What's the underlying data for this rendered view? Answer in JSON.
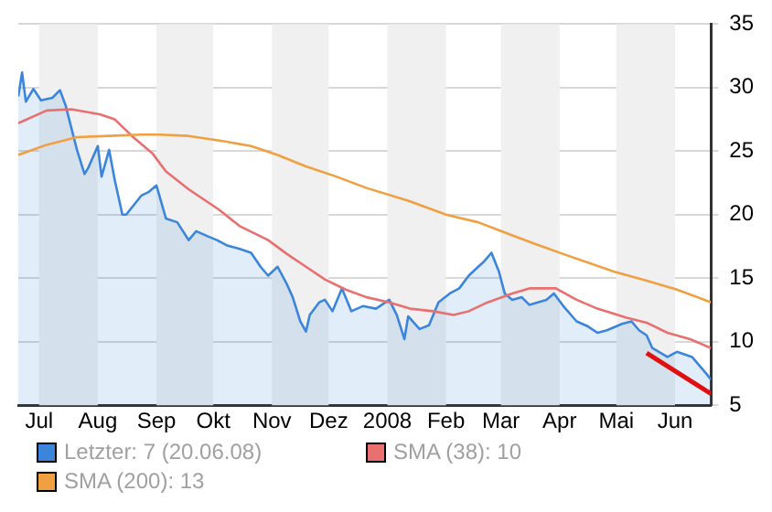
{
  "chart_data": {
    "type": "line",
    "x": [
      "2007-06-20",
      "2007-06-22",
      "2007-06-24",
      "2007-06-28",
      "2007-07-02",
      "2007-07-08",
      "2007-07-12",
      "2007-07-15",
      "2007-07-21",
      "2007-07-25",
      "2007-07-27",
      "2007-08-01",
      "2007-08-03",
      "2007-08-07",
      "2007-08-10",
      "2007-08-14",
      "2007-08-16",
      "2007-08-24",
      "2007-08-28",
      "2007-09-01",
      "2007-09-06",
      "2007-09-12",
      "2007-09-18",
      "2007-09-22",
      "2007-09-28",
      "2007-10-03",
      "2007-10-08",
      "2007-10-15",
      "2007-10-21",
      "2007-10-26",
      "2007-10-30",
      "2007-11-04",
      "2007-11-09",
      "2007-11-12",
      "2007-11-16",
      "2007-11-19",
      "2007-11-21",
      "2007-11-26",
      "2007-11-29",
      "2007-12-03",
      "2007-12-08",
      "2007-12-13",
      "2007-12-19",
      "2007-12-26",
      "2008-01-02",
      "2008-01-06",
      "2008-01-10",
      "2008-01-12",
      "2008-01-18",
      "2008-01-23",
      "2008-01-28",
      "2008-02-03",
      "2008-02-08",
      "2008-02-13",
      "2008-02-18",
      "2008-02-21",
      "2008-02-25",
      "2008-02-29",
      "2008-03-03",
      "2008-03-07",
      "2008-03-12",
      "2008-03-16",
      "2008-03-25",
      "2008-03-29",
      "2008-04-03",
      "2008-04-10",
      "2008-04-16",
      "2008-04-21",
      "2008-04-26",
      "2008-05-04",
      "2008-05-09",
      "2008-05-13",
      "2008-05-17",
      "2008-05-20",
      "2008-05-28",
      "2008-06-02",
      "2008-06-10",
      "2008-06-14",
      "2008-06-18",
      "2008-06-20"
    ],
    "series": [
      {
        "name": "Letzter: 7 (20.06.08)",
        "type": "area",
        "color": "#3b86dc",
        "values": [
          29.3,
          31.2,
          28.9,
          29.9,
          29,
          29.2,
          29.8,
          28.6,
          25.1,
          23.2,
          23.7,
          25.4,
          23,
          25.1,
          22.7,
          20,
          20,
          21.5,
          21.8,
          22.3,
          19.7,
          19.4,
          18,
          18.7,
          18.3,
          18,
          17.6,
          17.3,
          17,
          15.9,
          15.2,
          15.9,
          14.5,
          13.5,
          11.6,
          10.8,
          12.1,
          13.1,
          13.3,
          12.4,
          14.2,
          12.4,
          12.8,
          12.6,
          13.3,
          12.1,
          10.2,
          12,
          11,
          11.3,
          13.1,
          13.8,
          14.2,
          15.2,
          15.9,
          16.3,
          17,
          15.5,
          13.8,
          13.3,
          13.5,
          12.9,
          13.3,
          13.8,
          12.8,
          11.6,
          11.2,
          10.7,
          10.9,
          11.4,
          11.6,
          10.9,
          10.5,
          9.5,
          8.8,
          9.2,
          8.8,
          8.1,
          7.4,
          7
        ]
      },
      {
        "name": "SMA (38): 10",
        "type": "line",
        "color": "#e87070",
        "x": [
          "2007-06-20",
          "2007-07-05",
          "2007-07-18",
          "2007-08-02",
          "2007-08-10",
          "2007-08-19",
          "2007-08-30",
          "2007-09-06",
          "2007-09-18",
          "2007-10-04",
          "2007-10-15",
          "2007-10-30",
          "2007-11-09",
          "2007-11-19",
          "2007-11-29",
          "2007-12-10",
          "2007-12-21",
          "2008-01-02",
          "2008-01-13",
          "2008-01-25",
          "2008-02-05",
          "2008-02-13",
          "2008-02-23",
          "2008-03-07",
          "2008-03-16",
          "2008-03-30",
          "2008-04-10",
          "2008-04-21",
          "2008-05-06",
          "2008-05-17",
          "2008-05-28",
          "2008-06-09",
          "2008-06-20"
        ],
        "values": [
          27.2,
          28.2,
          28.3,
          27.9,
          27.5,
          26.2,
          24.8,
          23.4,
          22,
          20.4,
          19.1,
          18,
          16.9,
          15.9,
          14.9,
          14.1,
          13.5,
          13.1,
          12.6,
          12.4,
          12.1,
          12.4,
          13.1,
          13.8,
          14.2,
          14.2,
          13.3,
          12.6,
          11.9,
          11.5,
          10.7,
          10.2,
          9.5
        ]
      },
      {
        "name": "SMA (200): 13",
        "type": "line",
        "color": "#f0a040",
        "x": [
          "2007-06-20",
          "2007-07-05",
          "2007-07-21",
          "2007-08-07",
          "2007-08-24",
          "2007-09-03",
          "2007-09-18",
          "2007-10-06",
          "2007-10-21",
          "2007-11-04",
          "2007-11-19",
          "2007-12-05",
          "2007-12-21",
          "2008-01-12",
          "2008-02-01",
          "2008-02-18",
          "2008-03-03",
          "2008-03-19",
          "2008-04-03",
          "2008-04-30",
          "2008-05-17",
          "2008-06-02",
          "2008-06-20"
        ],
        "values": [
          24.7,
          25.5,
          26.1,
          26.2,
          26.3,
          26.3,
          26.2,
          25.8,
          25.4,
          24.7,
          23.8,
          23,
          22.1,
          21.1,
          20,
          19.4,
          18.6,
          17.7,
          16.9,
          15.5,
          14.8,
          14.1,
          13.1
        ]
      },
      {
        "type": "line",
        "color": "#e01010",
        "x": [
          "2008-05-17",
          "2008-06-20"
        ],
        "values": [
          9.1,
          5.9
        ]
      }
    ],
    "xlim": [
      "2007-06-20",
      "2008-06-20"
    ],
    "xticks": [
      {
        "value": "2007-07-01",
        "label": "Jul"
      },
      {
        "value": "2007-08-01",
        "label": "Aug"
      },
      {
        "value": "2007-09-01",
        "label": "Sep"
      },
      {
        "value": "2007-10-01",
        "label": "Okt"
      },
      {
        "value": "2007-11-01",
        "label": "Nov"
      },
      {
        "value": "2007-12-01",
        "label": "Dez"
      },
      {
        "value": "2008-01-01",
        "label": "2008"
      },
      {
        "value": "2008-02-01",
        "label": "Feb"
      },
      {
        "value": "2008-03-01",
        "label": "Mar"
      },
      {
        "value": "2008-04-01",
        "label": "Apr"
      },
      {
        "value": "2008-05-01",
        "label": "Mai"
      },
      {
        "value": "2008-06-01",
        "label": "Jun"
      }
    ],
    "ylim": [
      5,
      35
    ],
    "yticks": [
      5,
      10,
      15,
      20,
      25,
      30,
      35
    ],
    "bands": [
      {
        "axis": "x",
        "from": "2007-07-01",
        "to": "2007-08-01",
        "color": "#f0f0f0"
      },
      {
        "axis": "x",
        "from": "2007-09-01",
        "to": "2007-10-01",
        "color": "#f0f0f0"
      },
      {
        "axis": "x",
        "from": "2007-11-01",
        "to": "2007-12-01",
        "color": "#f0f0f0"
      },
      {
        "axis": "x",
        "from": "2008-01-01",
        "to": "2008-02-01",
        "color": "#f0f0f0"
      },
      {
        "axis": "x",
        "from": "2008-03-01",
        "to": "2008-04-01",
        "color": "#f0f0f0"
      },
      {
        "axis": "x",
        "from": "2008-05-01",
        "to": "2008-06-01",
        "color": "#f0f0f0"
      }
    ],
    "grid": "y",
    "legend": "bottom left",
    "marker": "none",
    "line_style": "solid"
  }
}
